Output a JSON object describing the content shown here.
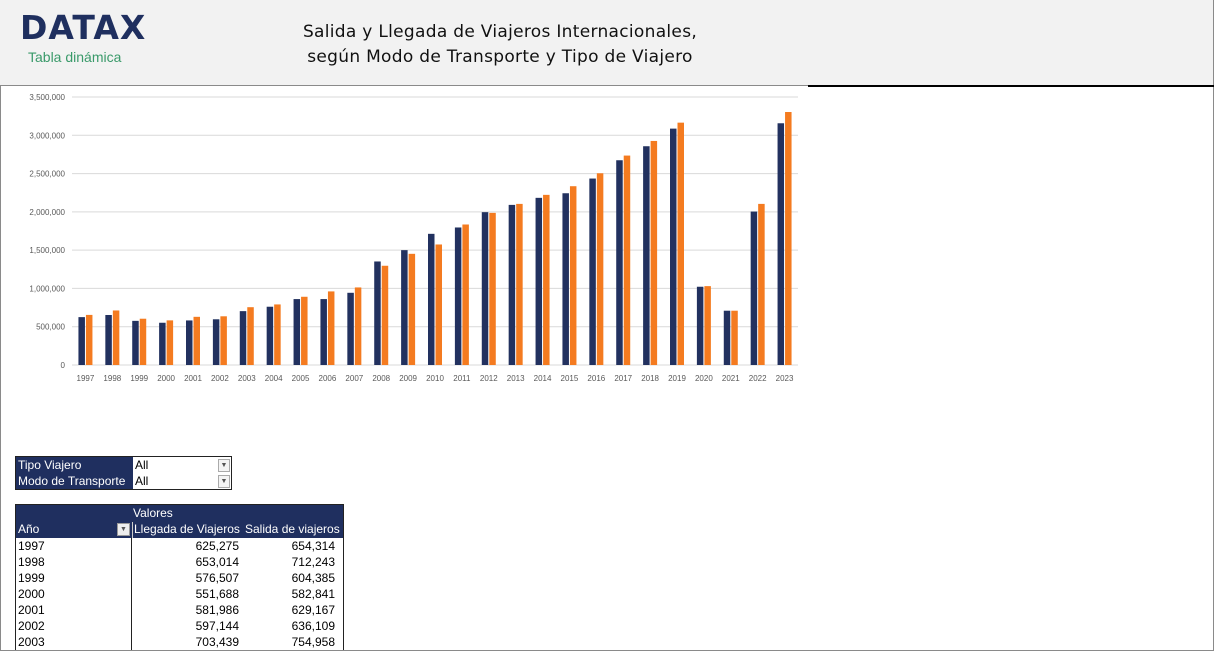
{
  "header": {
    "logo": "DATAX",
    "subtitle": "Tabla dinámica",
    "title_line1": "Salida y Llegada de Viajeros Internacionales,",
    "title_line2": "según Modo de Transporte y Tipo de Viajero"
  },
  "filters": [
    {
      "label": "Tipo Viajero",
      "value": "All"
    },
    {
      "label": "Modo de Transporte",
      "value": "All"
    }
  ],
  "pivot": {
    "values_label": "Valores",
    "col_year": "Año",
    "col_arrivals": "Llegada de Viajeros",
    "col_departures": "Salida de viajeros",
    "rows": [
      [
        "1997",
        "625,275",
        "654,314"
      ],
      [
        "1998",
        "653,014",
        "712,243"
      ],
      [
        "1999",
        "576,507",
        "604,385"
      ],
      [
        "2000",
        "551,688",
        "582,841"
      ],
      [
        "2001",
        "581,986",
        "629,167"
      ],
      [
        "2002",
        "597,144",
        "636,109"
      ],
      [
        "2003",
        "703,439",
        "754,958"
      ]
    ]
  },
  "chart_data": {
    "type": "bar",
    "title": "",
    "xlabel": "",
    "ylabel": "",
    "ylim": [
      0,
      3500000
    ],
    "grid": true,
    "yticks": [
      "0",
      "500,000",
      "1,000,000",
      "1,500,000",
      "2,000,000",
      "2,500,000",
      "3,000,000",
      "3,500,000"
    ],
    "categories": [
      "1997",
      "1998",
      "1999",
      "2000",
      "2001",
      "2002",
      "2003",
      "2004",
      "2005",
      "2006",
      "2007",
      "2008",
      "2009",
      "2010",
      "2011",
      "2012",
      "2013",
      "2014",
      "2015",
      "2016",
      "2017",
      "2018",
      "2019",
      "2020",
      "2021",
      "2022",
      "2023"
    ],
    "series": [
      {
        "name": "Llegada de Viajeros",
        "color": "#22315f",
        "values": [
          625275,
          653014,
          576507,
          551688,
          581986,
          597144,
          703439,
          761000,
          861000,
          861000,
          943000,
          1352000,
          1500000,
          1713000,
          1796000,
          1996000,
          2091000,
          2183000,
          2243000,
          2435000,
          2674000,
          2857000,
          3087000,
          1022000,
          709000,
          2004000,
          3157000
        ]
      },
      {
        "name": "Salida de viajeros",
        "color": "#f47b20",
        "values": [
          654314,
          712243,
          604385,
          582841,
          629167,
          636109,
          754958,
          791000,
          891000,
          961000,
          1013000,
          1296000,
          1452000,
          1574000,
          1835000,
          1987000,
          2104000,
          2222000,
          2335000,
          2504000,
          2735000,
          2926000,
          3165000,
          1030000,
          709000,
          2104000,
          3304000
        ]
      }
    ]
  }
}
